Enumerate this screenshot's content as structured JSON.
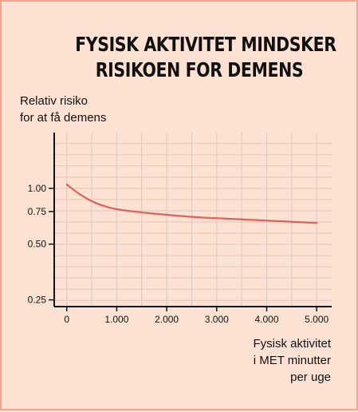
{
  "chart_data": {
    "type": "line",
    "title_lines": [
      "FYSISK AKTIVITET MINDSKER",
      "RISIKOEN FOR DEMENS"
    ],
    "ylabel_lines": [
      "Relativ risiko",
      "for at få demens"
    ],
    "xlabel_lines": [
      "Fysisk aktivitet",
      "i MET minutter",
      "per uge"
    ],
    "x_ticks": [
      0,
      1000,
      2000,
      3000,
      4000,
      5000
    ],
    "x_tick_labels": [
      "0",
      "1.000",
      "2.000",
      "3.000",
      "4.000",
      "5.000"
    ],
    "y_ticks": [
      1.0,
      0.75,
      0.5,
      0.25
    ],
    "y_tick_labels": [
      "1.00",
      "0.75",
      "0.50",
      "0.25"
    ],
    "xlim": [
      -250,
      5300
    ],
    "ylim": [
      0.23,
      2.0
    ],
    "y_scale": "log",
    "grid": true,
    "series": [
      {
        "x": [
          0,
          250,
          500,
          750,
          1000,
          1500,
          2000,
          2500,
          3000,
          3500,
          4000,
          4500,
          5000
        ],
        "y": [
          1.05,
          0.93,
          0.85,
          0.8,
          0.77,
          0.74,
          0.72,
          0.7,
          0.69,
          0.68,
          0.67,
          0.66,
          0.65
        ]
      }
    ],
    "colors": {
      "line": "#e0605a",
      "grid": "#d9c8c0",
      "axis": "#111111",
      "background": "#fde2d3",
      "border": "#f2a48c"
    }
  }
}
